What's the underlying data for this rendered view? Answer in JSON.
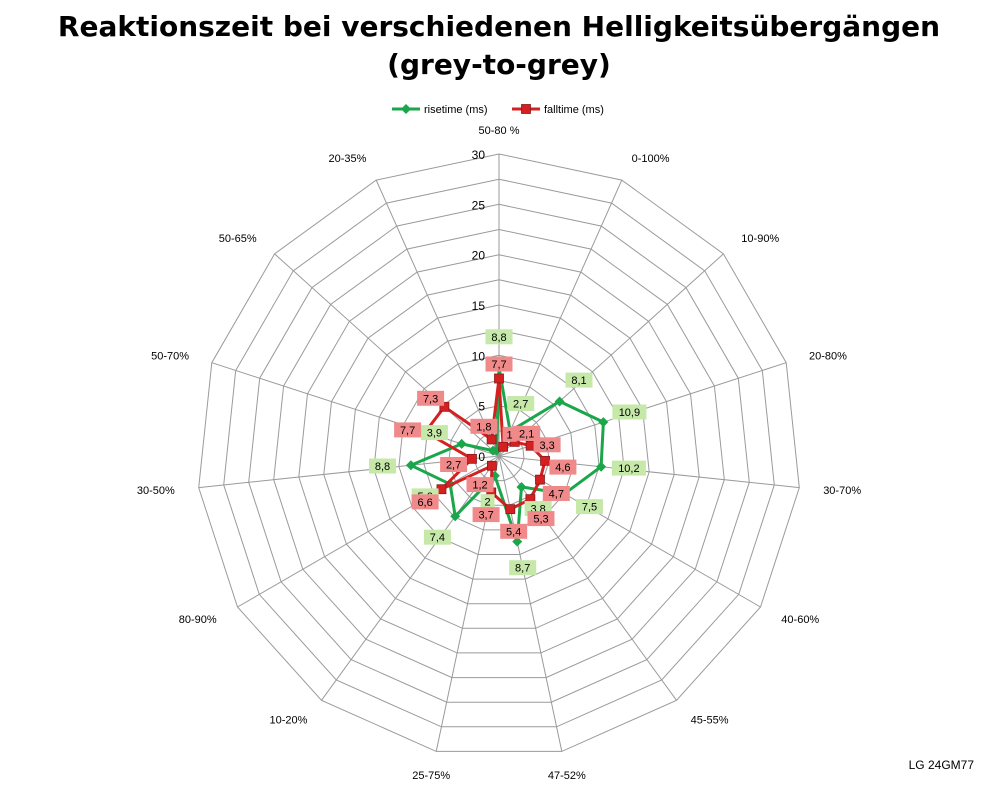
{
  "chart_data": {
    "type": "radar",
    "title_lines": [
      "Reaktionszeit bei verschiedenen Helligkeitsübergängen",
      "(grey-to-grey)"
    ],
    "categories": [
      "50-80 %",
      "0-100%",
      "10-90%",
      "20-80%",
      "30-70%",
      "40-60%",
      "45-55%",
      "47-52%",
      "25-75%",
      "10-20%",
      "80-90%",
      "30-50%",
      "50-70%",
      "50-65%",
      "20-35%"
    ],
    "rlim": [
      0,
      30
    ],
    "rticks": [
      "0",
      "5",
      "10",
      "15",
      "20",
      "25",
      "30"
    ],
    "legend_position": "top",
    "series": [
      {
        "name": "risetime (ms)",
        "color": "#1aa64a",
        "marker": "diamond",
        "values": [
          8.8,
          2.7,
          8.1,
          10.9,
          10.2,
          7.5,
          3.8,
          8.7,
          2,
          7.4,
          5.6,
          8.8,
          3.9,
          0.8,
          0.6
        ],
        "labels": [
          "8,8",
          "2,7",
          "8,1",
          "10,9",
          "10,2",
          "7,5",
          "3,8",
          "8,7",
          "2",
          "7,4",
          "5,6",
          "8,8",
          "3,9",
          "",
          ""
        ],
        "label_color": "#c6e8a9"
      },
      {
        "name": "falltime (ms)",
        "color": "#d42020",
        "marker": "square",
        "values": [
          7.7,
          1,
          2.1,
          3.3,
          4.6,
          4.7,
          5.3,
          5.4,
          3.7,
          1.2,
          6.6,
          2.7,
          7.7,
          7.3,
          1.8
        ],
        "labels": [
          "7,7",
          "1",
          "2,1",
          "3,3",
          "4,6",
          "4,7",
          "5,3",
          "5,4",
          "3,7",
          "1,2",
          "6,6",
          "2,7",
          "7,7",
          "7,3",
          "1,8"
        ],
        "label_color": "#f08a8a"
      }
    ]
  },
  "watermark": "LG 24GM77"
}
